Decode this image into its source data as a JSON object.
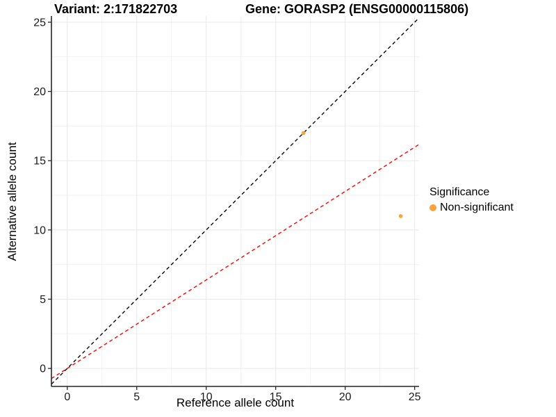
{
  "chart_data": {
    "type": "scatter",
    "titles": {
      "left": "Variant: 2:171822703",
      "right": "Gene: GORASP2 (ENSG00000115806)"
    },
    "xlabel": "Reference allele count",
    "ylabel": "Alternative allele count",
    "x_ticks": [
      0,
      5,
      10,
      15,
      20,
      25
    ],
    "y_ticks": [
      0,
      5,
      10,
      15,
      20,
      25
    ],
    "xlim": [
      -1.14,
      25.32
    ],
    "ylim": [
      -1.3,
      25.45
    ],
    "minor_step": 2.5,
    "grid": true,
    "points": [
      {
        "x": 17,
        "y": 17,
        "significance": "Non-significant"
      },
      {
        "x": 24,
        "y": 11,
        "significance": "Non-significant"
      }
    ],
    "point_color": "#F9A33C",
    "lines": [
      {
        "name": "identity-line",
        "slope": 1,
        "intercept": 0,
        "color": "#000000",
        "style": "dashed"
      },
      {
        "name": "fitted-line",
        "slope": 0.639,
        "intercept": 0,
        "color": "#FF0000",
        "style": "dashed"
      }
    ],
    "legend": {
      "position": "right",
      "title": "Significance",
      "items": [
        {
          "label": "Non-significant",
          "color": "#F9A33C"
        }
      ]
    },
    "colors": {
      "grid_major": "#E8E8E8",
      "grid_minor": "#F2F2F2",
      "axis": "#262626"
    }
  }
}
